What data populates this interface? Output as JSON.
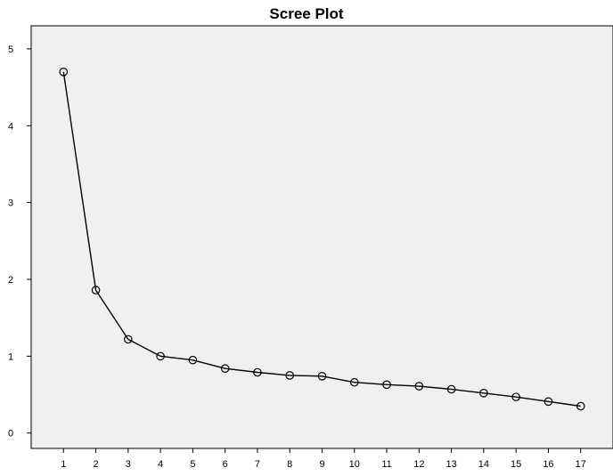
{
  "chart_data": {
    "type": "line",
    "title": "Scree Plot",
    "xlabel": "",
    "ylabel": "",
    "x": [
      1,
      2,
      3,
      4,
      5,
      6,
      7,
      8,
      9,
      10,
      11,
      12,
      13,
      14,
      15,
      16,
      17
    ],
    "series": [
      {
        "values": [
          4.7,
          1.86,
          1.22,
          1.0,
          0.95,
          0.84,
          0.79,
          0.75,
          0.74,
          0.66,
          0.63,
          0.61,
          0.57,
          0.52,
          0.47,
          0.41,
          0.35
        ],
        "marker": "open-circle",
        "color": "#000000"
      }
    ],
    "xticks": [
      "1",
      "2",
      "3",
      "4",
      "5",
      "6",
      "7",
      "8",
      "9",
      "10",
      "11",
      "12",
      "13",
      "14",
      "15",
      "16",
      "17"
    ],
    "yticks": [
      "0",
      "1",
      "2",
      "3",
      "4",
      "5"
    ],
    "xlim": [
      0,
      18
    ],
    "ylim": [
      -0.2,
      5.3
    ],
    "grid": false,
    "legend": "none",
    "plot_background": "#f0f0f0",
    "line_color": "#000000"
  }
}
